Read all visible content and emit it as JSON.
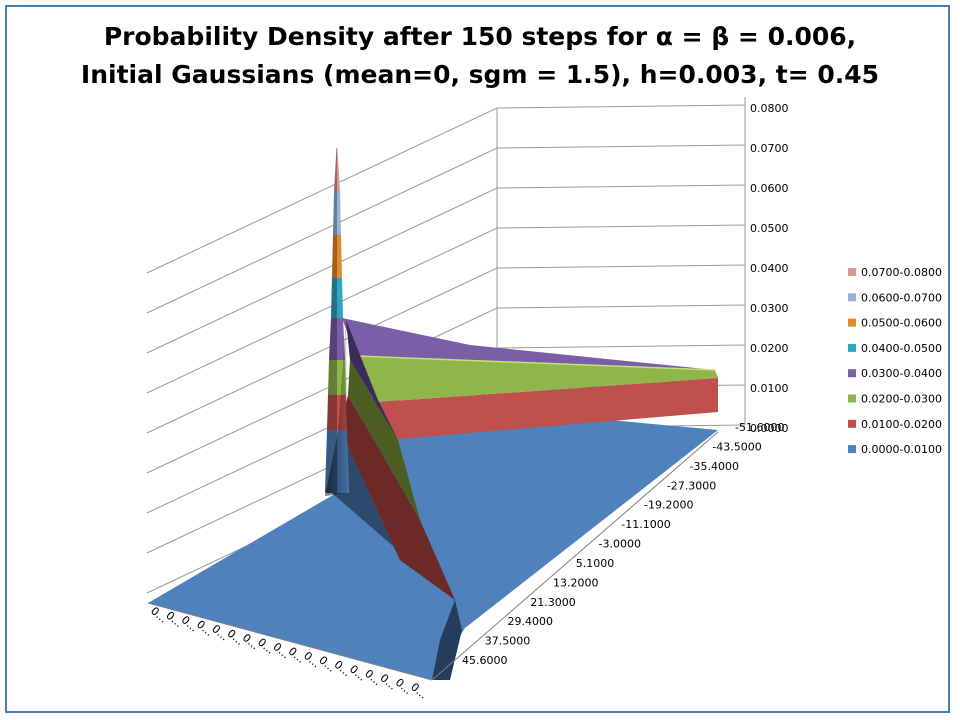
{
  "chart_data": {
    "type": "surface",
    "title_lines": [
      "Probability Density after 150 steps for α = β = 0.006,",
      "Initial Gaussians (mean=0, sgm = 1.5), h=0.003, t= 0.45"
    ],
    "z_ticks": [
      "0.0800",
      "0.0700",
      "0.0600",
      "0.0500",
      "0.0400",
      "0.0300",
      "0.0200",
      "0.0100",
      "0.0000"
    ],
    "zlim": [
      0,
      0.08
    ],
    "y_ticks": [
      "-51.6000",
      "-43.5000",
      "-35.4000",
      "-27.3000",
      "-19.2000",
      "-11.1000",
      "-3.0000",
      "5.1000",
      "13.2000",
      "21.3000",
      "29.4000",
      "37.5000",
      "45.6000"
    ],
    "x_ticks": [
      "0...",
      "0...",
      "0...",
      "0...",
      "0...",
      "0...",
      "0...",
      "0...",
      "0...",
      "0...",
      "0...",
      "0...",
      "0...",
      "0...",
      "0...",
      "0...",
      "0...",
      "0..."
    ],
    "peak_value": 0.074,
    "ridge_value": 0.027,
    "edge_ridge_value": 0.018,
    "legend": [
      {
        "label": "0.0700-0.0800",
        "color": "#d99694"
      },
      {
        "label": "0.0600-0.0700",
        "color": "#95b3d7"
      },
      {
        "label": "0.0500-0.0600",
        "color": "#e48a2e"
      },
      {
        "label": "0.0400-0.0500",
        "color": "#31a5bd"
      },
      {
        "label": "0.0300-0.0400",
        "color": "#7a5ea8"
      },
      {
        "label": "0.0200-0.0300",
        "color": "#8eb64a"
      },
      {
        "label": "0.0100-0.0200",
        "color": "#c0504d"
      },
      {
        "label": "0.0000-0.0100",
        "color": "#4f81bd"
      }
    ],
    "grid": true,
    "legend_position": "right"
  }
}
